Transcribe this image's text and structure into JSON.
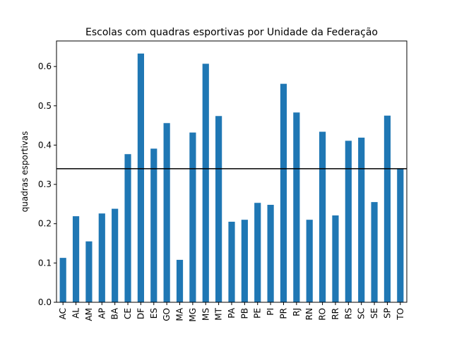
{
  "chart_data": {
    "type": "bar",
    "title": "Escolas com quadras esportivas por Unidade da Federação",
    "xlabel": "",
    "ylabel": "quadras esportivas",
    "ylim": [
      0,
      0.665
    ],
    "yticks": [
      "0.0",
      "0.1",
      "0.2",
      "0.3",
      "0.4",
      "0.5",
      "0.6"
    ],
    "categories": [
      "AC",
      "AL",
      "AM",
      "AP",
      "BA",
      "CE",
      "DF",
      "ES",
      "GO",
      "MA",
      "MG",
      "MS",
      "MT",
      "PA",
      "PB",
      "PE",
      "PI",
      "PR",
      "RJ",
      "RN",
      "RO",
      "RR",
      "RS",
      "SC",
      "SE",
      "SP",
      "TO"
    ],
    "values": [
      0.113,
      0.219,
      0.155,
      0.226,
      0.238,
      0.377,
      0.633,
      0.391,
      0.456,
      0.108,
      0.432,
      0.607,
      0.474,
      0.205,
      0.21,
      0.253,
      0.248,
      0.556,
      0.483,
      0.21,
      0.434,
      0.221,
      0.411,
      0.419,
      0.255,
      0.475,
      0.34
    ],
    "reference_line": 0.34,
    "bar_color": "#1f77b4",
    "line_color": "#000000",
    "grid": false,
    "legend": "none"
  }
}
